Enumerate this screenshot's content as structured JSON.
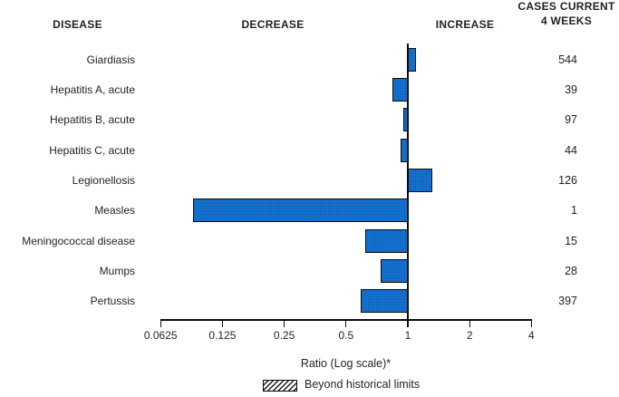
{
  "header": {
    "disease": "DISEASE",
    "decrease": "DECREASE",
    "increase": "INCREASE",
    "cases_line1": "CASES CURRENT",
    "cases_line2": "4 WEEKS"
  },
  "chart_data": {
    "type": "bar",
    "orientation": "horizontal",
    "scale": "log2",
    "baseline": 1,
    "xlabel": "Ratio (Log scale)*",
    "xlim": [
      0.0625,
      4
    ],
    "tick_values": [
      0.0625,
      0.125,
      0.25,
      0.5,
      1,
      2,
      4
    ],
    "tick_labels": [
      "0.0625",
      "0.125",
      "0.25",
      "0.5",
      "1",
      "2",
      "4"
    ],
    "rows": [
      {
        "disease": "Giardiasis",
        "ratio": 1.1,
        "cases": 544,
        "beyond_historical_limits": false
      },
      {
        "disease": "Hepatitis A, acute",
        "ratio": 0.84,
        "cases": 39,
        "beyond_historical_limits": false
      },
      {
        "disease": "Hepatitis B, acute",
        "ratio": 0.95,
        "cases": 97,
        "beyond_historical_limits": false
      },
      {
        "disease": "Hepatitis C, acute",
        "ratio": 0.92,
        "cases": 44,
        "beyond_historical_limits": false
      },
      {
        "disease": "Legionellosis",
        "ratio": 1.31,
        "cases": 126,
        "beyond_historical_limits": false
      },
      {
        "disease": "Measles",
        "ratio": 0.09,
        "cases": 1,
        "beyond_historical_limits": false
      },
      {
        "disease": "Meningococcal disease",
        "ratio": 0.62,
        "cases": 15,
        "beyond_historical_limits": false
      },
      {
        "disease": "Mumps",
        "ratio": 0.74,
        "cases": 28,
        "beyond_historical_limits": false
      },
      {
        "disease": "Pertussis",
        "ratio": 0.59,
        "cases": 397,
        "beyond_historical_limits": false
      }
    ],
    "legend": [
      {
        "label": "Beyond historical limits",
        "swatch": "diagonal-hatch"
      }
    ]
  },
  "colors": {
    "bar_fill": "#1470cd",
    "bar_fill_shade": "#0b57a4",
    "bar_border": "#0b0b0b",
    "text": "#231f20"
  }
}
